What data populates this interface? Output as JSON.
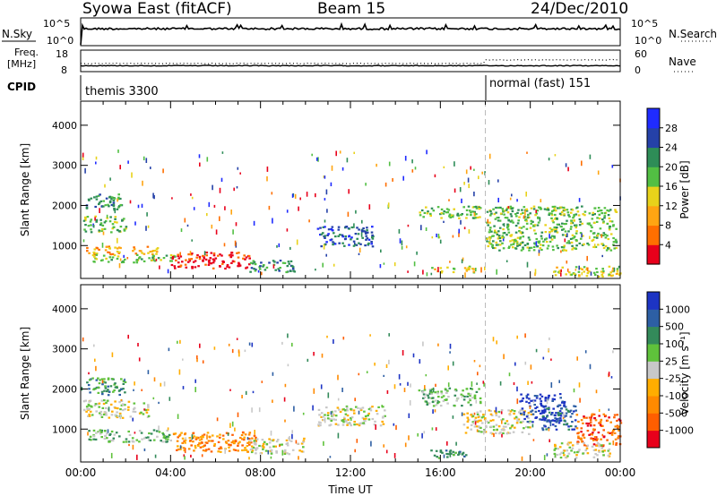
{
  "header": {
    "station": "Syowa East (fitACF)",
    "beam": "Beam 15",
    "date": "24/Dec/2010"
  },
  "noise_panel": {
    "left_label": "N.Sky",
    "right_label": "N.Search",
    "left_ticks": [
      "10^5",
      "10^0"
    ],
    "right_ticks": [
      "10^5",
      "10^0"
    ]
  },
  "freq_panel": {
    "left_label_1": "Freq.",
    "left_label_2": "[MHz]",
    "left_ticks": [
      "18",
      "8"
    ],
    "right_label": "Nave",
    "right_ticks": [
      "60",
      "0"
    ]
  },
  "cpid_panel": {
    "label": "CPID",
    "modes": [
      {
        "name": "themis 3300",
        "start_hour": 0
      },
      {
        "name": "normal (fast) 151",
        "start_hour": 18
      }
    ]
  },
  "chart_data": [
    {
      "type": "heatmap",
      "parameter": "Power",
      "ylabel": "Slant Range [km]",
      "xlabel": "",
      "xlim": [
        0,
        24
      ],
      "ylim": [
        180,
        4600
      ],
      "y_ticks": [
        "1000",
        "2000",
        "3000",
        "4000"
      ],
      "y_tick_values": [
        1000,
        2000,
        3000,
        4000
      ],
      "colorbar": {
        "label": "Power [dB]",
        "labels": [
          "4",
          "8",
          "12",
          "16",
          "20",
          "24",
          "28"
        ],
        "colors": [
          "#1f2bff",
          "#2541a8",
          "#2e8d57",
          "#52bf43",
          "#e8d21a",
          "#ffa512",
          "#ff6f00",
          "#e8001b"
        ]
      },
      "echo_regions": [
        {
          "t0": 0.1,
          "t1": 2.0,
          "r0": 1350,
          "r1": 1750,
          "level": 3
        },
        {
          "t0": 0.2,
          "t1": 1.8,
          "r0": 1900,
          "r1": 2300,
          "level": 2
        },
        {
          "t0": 0.2,
          "t1": 3.5,
          "r0": 800,
          "r1": 1000,
          "level": 5
        },
        {
          "t0": 0.5,
          "t1": 4.2,
          "r0": 600,
          "r1": 800,
          "level": 3
        },
        {
          "t0": 4.0,
          "t1": 7.5,
          "r0": 450,
          "r1": 850,
          "level": 7
        },
        {
          "t0": 7.5,
          "t1": 9.5,
          "r0": 350,
          "r1": 650,
          "level": 2
        },
        {
          "t0": 10.5,
          "t1": 13.0,
          "r0": 1000,
          "r1": 1500,
          "level": 1
        },
        {
          "t0": 15.0,
          "t1": 17.8,
          "r0": 1700,
          "r1": 2000,
          "level": 3
        },
        {
          "t0": 15.5,
          "t1": 17.5,
          "r0": 350,
          "r1": 500,
          "level": 4
        },
        {
          "t0": 18.0,
          "t1": 23.8,
          "r0": 900,
          "r1": 2000,
          "level": 3
        },
        {
          "t0": 21.0,
          "t1": 24.0,
          "r0": 250,
          "r1": 500,
          "level": 4
        }
      ]
    },
    {
      "type": "heatmap",
      "parameter": "Velocity",
      "ylabel": "Slant Range [km]",
      "xlabel": "Time UT",
      "xlim": [
        0,
        24
      ],
      "ylim": [
        180,
        4600
      ],
      "x_ticks": [
        "00:00",
        "04:00",
        "08:00",
        "12:00",
        "16:00",
        "20:00",
        "00:00"
      ],
      "x_tick_values": [
        0,
        4,
        8,
        12,
        16,
        20,
        24
      ],
      "y_ticks": [
        "1000",
        "2000",
        "3000",
        "4000"
      ],
      "y_tick_values": [
        1000,
        2000,
        3000,
        4000
      ],
      "colorbar": {
        "label": "Velocity [m s⁻¹]",
        "labels": [
          "1000",
          "500",
          "100",
          "25",
          "-25",
          "-100",
          "-500",
          "-1000"
        ],
        "colors": [
          "#1d34c4",
          "#2d5fa4",
          "#338a5a",
          "#5fc23b",
          "#c8c8c8",
          "#ffad00",
          "#ff8a00",
          "#ff5e00",
          "#e8001b"
        ]
      },
      "echo_regions": [
        {
          "t0": 0.1,
          "t1": 3.0,
          "r0": 1300,
          "r1": 1750,
          "level": 4
        },
        {
          "t0": 0.2,
          "t1": 2.0,
          "r0": 1850,
          "r1": 2300,
          "level": 2
        },
        {
          "t0": 0.3,
          "t1": 4.0,
          "r0": 700,
          "r1": 1000,
          "level": 3
        },
        {
          "t0": 4.0,
          "t1": 7.8,
          "r0": 450,
          "r1": 950,
          "level": 6
        },
        {
          "t0": 7.5,
          "t1": 10.0,
          "r0": 400,
          "r1": 800,
          "level": 4
        },
        {
          "t0": 10.5,
          "t1": 13.5,
          "r0": 1100,
          "r1": 1600,
          "level": 4
        },
        {
          "t0": 15.0,
          "t1": 17.8,
          "r0": 1600,
          "r1": 2050,
          "level": 3
        },
        {
          "t0": 15.5,
          "t1": 17.5,
          "r0": 300,
          "r1": 500,
          "level": 2
        },
        {
          "t0": 17.0,
          "t1": 20.0,
          "r0": 900,
          "r1": 1500,
          "level": 4
        },
        {
          "t0": 19.5,
          "t1": 21.5,
          "r0": 1200,
          "r1": 1900,
          "level": 0
        },
        {
          "t0": 20.5,
          "t1": 22.0,
          "r0": 1000,
          "r1": 1600,
          "level": 1
        },
        {
          "t0": 22.0,
          "t1": 24.0,
          "r0": 600,
          "r1": 1400,
          "level": 7
        },
        {
          "t0": 21.0,
          "t1": 23.5,
          "r0": 300,
          "r1": 700,
          "level": 4
        }
      ]
    }
  ],
  "mode_change_hour": 18
}
